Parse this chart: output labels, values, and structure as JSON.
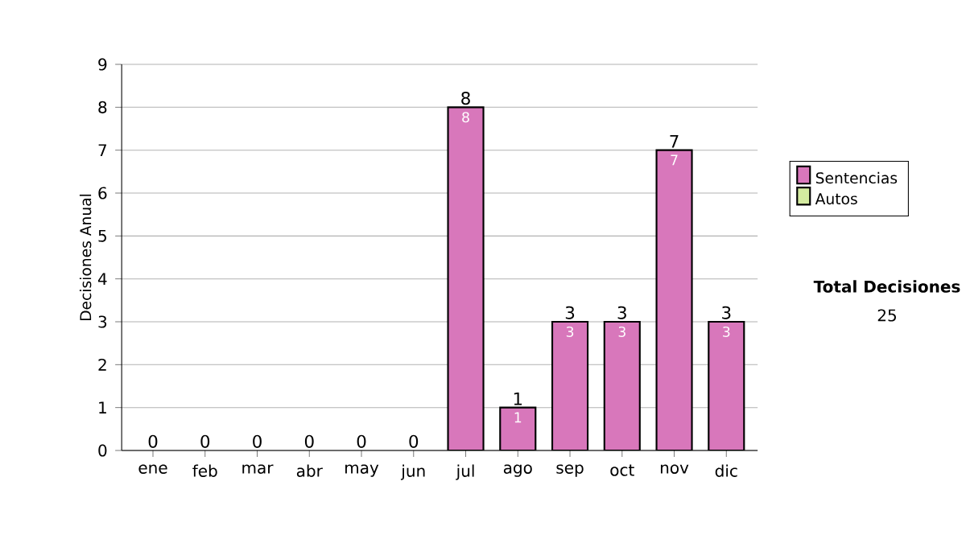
{
  "chart_data": {
    "type": "bar",
    "stacked": true,
    "ylabel": "Decisiones Anual",
    "categories": [
      "ene",
      "feb",
      "mar",
      "abr",
      "may",
      "jun",
      "jul",
      "ago",
      "sep",
      "oct",
      "nov",
      "dic"
    ],
    "series": [
      {
        "name": "Sentencias",
        "color": "#d877bb",
        "values": [
          0,
          0,
          0,
          0,
          0,
          0,
          8,
          1,
          3,
          3,
          7,
          3
        ],
        "value_labels": [
          null,
          null,
          null,
          null,
          null,
          null,
          "8",
          "1",
          "3",
          "3",
          "7",
          "3"
        ]
      },
      {
        "name": "Autos",
        "color": "#d4eba0",
        "values": [
          0,
          0,
          0,
          0,
          0,
          0,
          0,
          0,
          0,
          0,
          0,
          0
        ]
      }
    ],
    "totals": [
      "0",
      "0",
      "0",
      "0",
      "0",
      "0",
      "8",
      "1",
      "3",
      "3",
      "7",
      "3"
    ],
    "ylim": [
      0,
      9
    ],
    "yticks": [
      0,
      1,
      2,
      3,
      4,
      5,
      6,
      7,
      8,
      9
    ],
    "grid": "y",
    "legend": "right",
    "annotations": [
      "Total Decisiones",
      "25"
    ]
  }
}
